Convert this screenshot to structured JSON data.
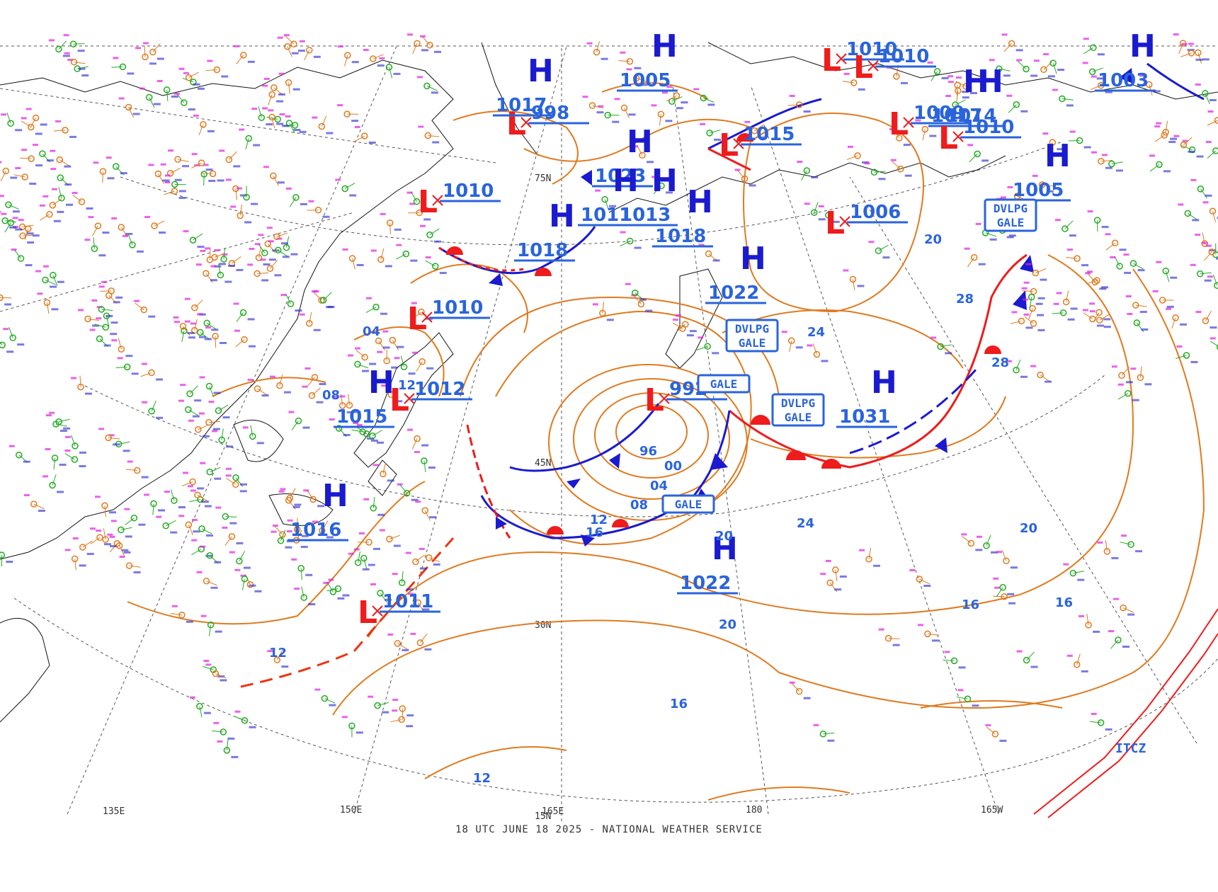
{
  "colors": {
    "isobar": "#e07a1e",
    "high": "#1a1ad0",
    "low": "#ee1c1c",
    "label": "#2a64dc",
    "cold_front": "#1a1ad0",
    "warm_front": "#ee1c1c",
    "trough": "#ee3311",
    "itcz": "#ee1c1c",
    "graticule": "#555555",
    "coast": "#111111",
    "obs_green": "#22aa22",
    "obs_orange": "#e07a1e",
    "obs_magenta": "#e020e0",
    "obs_blue": "#2222cc"
  },
  "footer": "18 UTC JUNE 18 2025 - NATIONAL WEATHER SERVICE",
  "graticule_labels": {
    "lon": [
      "135E",
      "150E",
      "165E",
      "180",
      "165W"
    ],
    "lat": [
      "15N",
      "30N",
      "45N",
      "75N"
    ]
  },
  "pressure_centers": [
    {
      "type": "H",
      "value": "1018"
    },
    {
      "type": "L",
      "value": "1010"
    },
    {
      "type": "L",
      "value": "1012"
    },
    {
      "type": "H",
      "value": "1015"
    },
    {
      "type": "H",
      "value": "1016"
    },
    {
      "type": "L",
      "value": "1011"
    },
    {
      "type": "L",
      "value": "992"
    },
    {
      "type": "H",
      "value": "1022"
    },
    {
      "type": "H",
      "value": "1031"
    },
    {
      "type": "L",
      "value": "1006"
    },
    {
      "type": "H",
      "value": "1018"
    },
    {
      "type": "H",
      "value": "1022"
    },
    {
      "type": "L",
      "value": "998"
    },
    {
      "type": "H",
      "value": "1023"
    },
    {
      "type": "H",
      "value": "1013"
    },
    {
      "type": "H",
      "value": "1011"
    },
    {
      "type": "L",
      "value": "1010"
    },
    {
      "type": "H",
      "value": "1017"
    },
    {
      "type": "H",
      "value": "1005"
    },
    {
      "type": "L",
      "value": "1010"
    },
    {
      "type": "L",
      "value": "1009"
    },
    {
      "type": "H",
      "value": "1014"
    },
    {
      "type": "L",
      "value": "1010"
    },
    {
      "type": "H",
      "value": "1003"
    },
    {
      "type": "H",
      "value": "1005"
    },
    {
      "type": "L",
      "value": "1010"
    },
    {
      "type": "L",
      "value": "1015"
    },
    {
      "type": "H",
      "value": "1017"
    }
  ],
  "warnings": [
    "GALE",
    "GALE",
    "DVLPG GALE",
    "DVLPG GALE",
    "DVLPG GALE"
  ],
  "itcz_label": "ITCZ",
  "isobar_labels": [
    "12",
    "16",
    "20",
    "24",
    "28",
    "00",
    "04",
    "08",
    "96",
    "12",
    "16",
    "20",
    "16",
    "12",
    "20",
    "24",
    "28",
    "20",
    "16",
    "12",
    "08",
    "04"
  ]
}
